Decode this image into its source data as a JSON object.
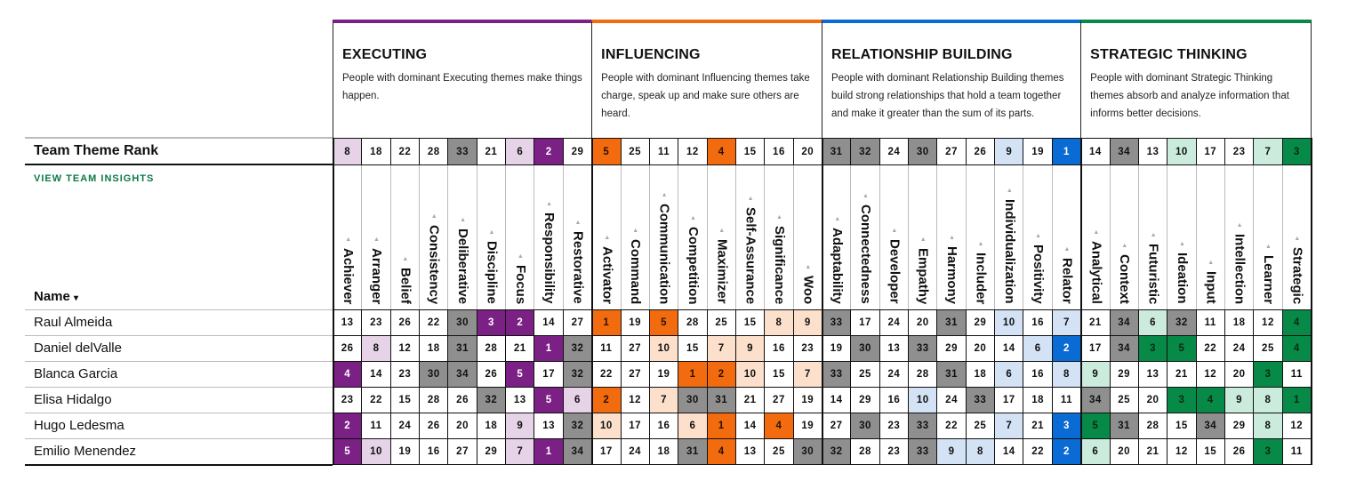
{
  "team_rank_label": "Team Theme Rank",
  "insights_link": "VIEW TEAM INSIGHTS",
  "name_header": "Name",
  "sort_icon": "▾",
  "sort_indicator": "▲",
  "colors": {
    "low_rank_gray": "#8f8f8f",
    "insights_green": "#0b7a44"
  },
  "domains": [
    {
      "title": "EXECUTING",
      "description": "People with dominant Executing themes make things happen.",
      "color": "#7b2085",
      "light": "#e6d3e8",
      "dark_text": "#ffffff",
      "themes": [
        "Achiever",
        "Arranger",
        "Belief",
        "Consistency",
        "Deliberative",
        "Discipline",
        "Focus",
        "Responsibility",
        "Restorative"
      ]
    },
    {
      "title": "INFLUENCING",
      "description": "People with dominant Influencing themes take charge, speak up and make sure others are heard.",
      "color": "#f26b0f",
      "light": "#fce0cb",
      "dark_text": "#2a1200",
      "themes": [
        "Activator",
        "Command",
        "Communication",
        "Competition",
        "Maximizer",
        "Self-Assurance",
        "Significance",
        "Woo"
      ]
    },
    {
      "title": "RELATIONSHIP BUILDING",
      "description": "People with dominant Relationship Building themes build strong relationships that hold a team together and make it greater than the sum of its parts.",
      "color": "#0b6bd4",
      "light": "#d3e2f4",
      "dark_text": "#ffffff",
      "themes": [
        "Adaptability",
        "Connectedness",
        "Developer",
        "Empathy",
        "Harmony",
        "Includer",
        "Individualization",
        "Positivity",
        "Relator"
      ]
    },
    {
      "title": "STRATEGIC THINKING",
      "description": "People with dominant Strategic Thinking themes absorb and analyze information that informs better decisions.",
      "color": "#078a47",
      "light": "#cbebdd",
      "dark_text": "#062a14",
      "themes": [
        "Analytical",
        "Context",
        "Futuristic",
        "Ideation",
        "Input",
        "Intellection",
        "Learner",
        "Strategic"
      ]
    }
  ],
  "team_rank": [
    8,
    18,
    22,
    28,
    33,
    21,
    6,
    2,
    29,
    5,
    25,
    11,
    12,
    4,
    15,
    16,
    20,
    31,
    32,
    24,
    30,
    27,
    26,
    9,
    19,
    1,
    14,
    34,
    13,
    10,
    17,
    23,
    7,
    3
  ],
  "members": [
    {
      "name": "Raul Almeida",
      "ranks": [
        13,
        23,
        26,
        22,
        30,
        3,
        2,
        14,
        27,
        1,
        19,
        5,
        28,
        25,
        15,
        8,
        9,
        33,
        17,
        24,
        20,
        31,
        29,
        10,
        16,
        7,
        21,
        34,
        6,
        32,
        11,
        18,
        12,
        4
      ]
    },
    {
      "name": "Daniel delValle",
      "ranks": [
        26,
        8,
        12,
        18,
        31,
        28,
        21,
        1,
        32,
        11,
        27,
        10,
        15,
        7,
        9,
        16,
        23,
        19,
        30,
        13,
        33,
        29,
        20,
        14,
        6,
        2,
        17,
        34,
        3,
        5,
        22,
        24,
        25,
        4
      ]
    },
    {
      "name": "Blanca Garcia",
      "ranks": [
        4,
        14,
        23,
        30,
        34,
        26,
        5,
        17,
        32,
        22,
        27,
        19,
        1,
        2,
        10,
        15,
        7,
        33,
        25,
        24,
        28,
        31,
        18,
        6,
        16,
        8,
        9,
        29,
        13,
        21,
        12,
        20,
        3,
        11
      ]
    },
    {
      "name": "Elisa Hidalgo",
      "ranks": [
        23,
        22,
        15,
        28,
        26,
        32,
        13,
        5,
        6,
        2,
        12,
        7,
        30,
        31,
        21,
        27,
        19,
        14,
        29,
        16,
        10,
        24,
        33,
        17,
        18,
        11,
        34,
        25,
        20,
        3,
        4,
        9,
        8,
        1
      ]
    },
    {
      "name": "Hugo Ledesma",
      "ranks": [
        2,
        11,
        24,
        26,
        20,
        18,
        9,
        13,
        32,
        10,
        17,
        16,
        6,
        1,
        14,
        4,
        19,
        27,
        30,
        23,
        33,
        22,
        25,
        7,
        21,
        3,
        5,
        31,
        28,
        15,
        34,
        29,
        8,
        12
      ]
    },
    {
      "name": "Emilio Menendez",
      "ranks": [
        5,
        10,
        19,
        16,
        27,
        29,
        7,
        1,
        34,
        17,
        24,
        18,
        31,
        4,
        13,
        25,
        30,
        32,
        28,
        23,
        33,
        9,
        8,
        14,
        22,
        2,
        6,
        20,
        21,
        12,
        15,
        26,
        3,
        11
      ]
    }
  ]
}
